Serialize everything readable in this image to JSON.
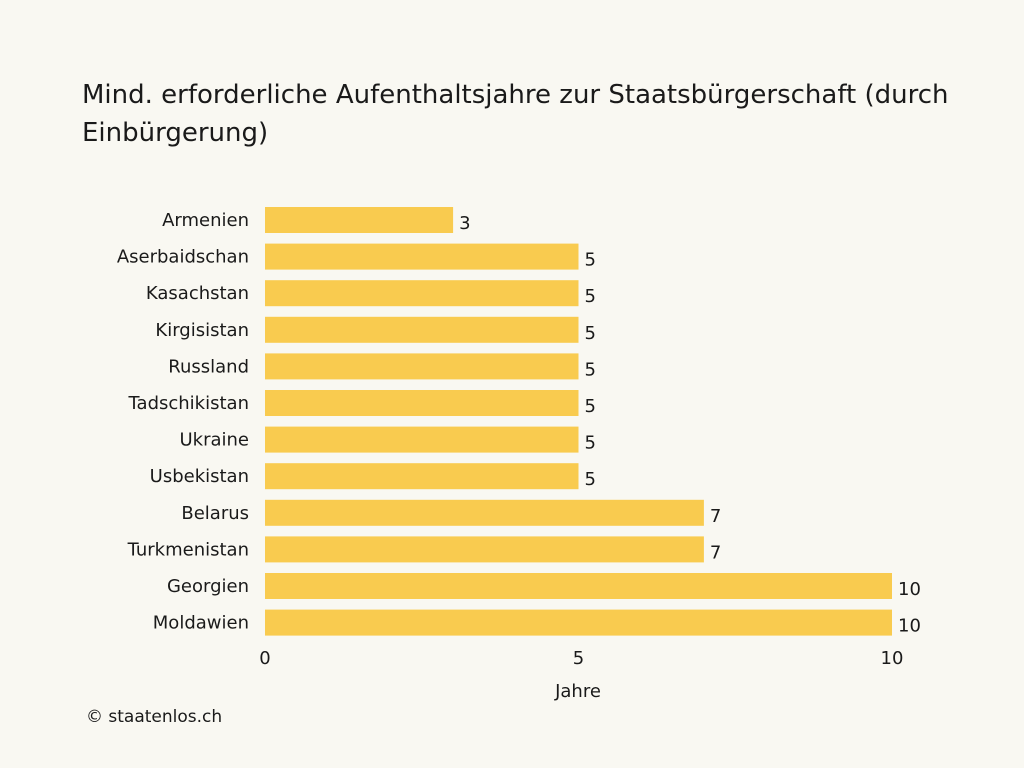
{
  "chart_data": {
    "type": "bar",
    "orientation": "horizontal",
    "title": "Mind. erforderliche Aufenthaltsjahre zur Staatsbürgerschaft (durch Einbürgerung)",
    "xlabel": "Jahre",
    "ylabel": "",
    "xlim": [
      0,
      10
    ],
    "xticks": [
      0,
      5,
      10
    ],
    "grid": false,
    "legend": false,
    "categories": [
      "Armenien",
      "Aserbaidschan",
      "Kasachstan",
      "Kirgisistan",
      "Russland",
      "Tadschikistan",
      "Ukraine",
      "Usbekistan",
      "Belarus",
      "Turkmenistan",
      "Georgien",
      "Moldawien"
    ],
    "values": [
      3,
      5,
      5,
      5,
      5,
      5,
      5,
      5,
      7,
      7,
      10,
      10
    ],
    "bar_color": "#f9cb4f"
  },
  "credit": "© staatenlos.ch",
  "colors": {
    "background": "#f9f8f2",
    "text": "#1a1a1a"
  }
}
